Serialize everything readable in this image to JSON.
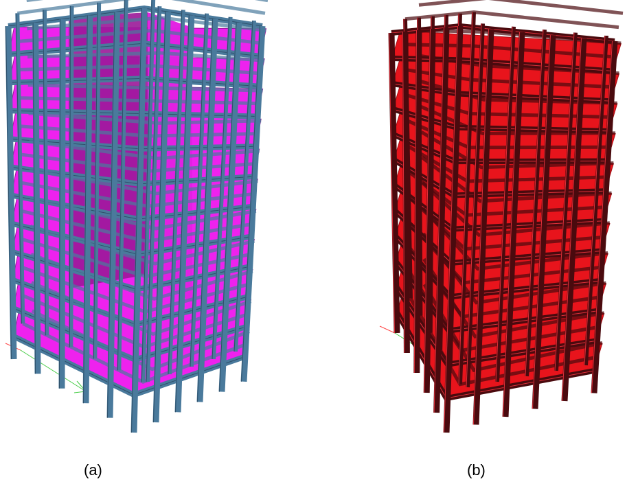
{
  "figures": [
    {
      "label": "(a)",
      "frame_color": "#4a7a9c",
      "frame_edge_color": "#2e4f68",
      "slab_color": "#ee22ee",
      "slab_dark_color": "#9a1898",
      "floors": 11,
      "bays_front": 5,
      "bays_side": 5,
      "has_core_wall": true
    },
    {
      "label": "(b)",
      "frame_color": "#4a0a0e",
      "frame_edge_color": "#e0303a",
      "slab_color": "#e8141c",
      "slab_dark_color": "#a40c12",
      "floors": 11,
      "bays_front": 5,
      "bays_side": 5,
      "has_core_wall": false
    }
  ],
  "axis_colors": {
    "x": "#ff4444",
    "y": "#44cc44"
  }
}
